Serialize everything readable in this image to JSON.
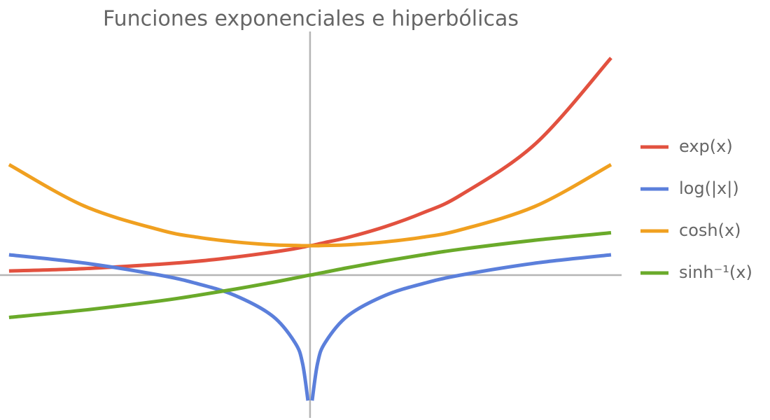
{
  "chart_data": {
    "type": "line",
    "title": "Funciones exponenciales e hiperbólicas",
    "x": [
      -2,
      -1.5,
      -1,
      -0.75,
      -0.5,
      -0.25,
      -0.1,
      -0.05,
      -0.014,
      0,
      0.014,
      0.05,
      0.1,
      0.25,
      0.5,
      0.75,
      1,
      1.5,
      2
    ],
    "series": [
      {
        "name": "exp(x)",
        "color": "#e2513f",
        "values": [
          0.14,
          0.22,
          0.37,
          0.47,
          0.61,
          0.78,
          0.9,
          0.95,
          0.99,
          1,
          1.01,
          1.05,
          1.11,
          1.28,
          1.65,
          2.12,
          2.72,
          4.48,
          7.39
        ]
      },
      {
        "name": "log(|x|)",
        "color": "#5b7fdb",
        "values": [
          0.69,
          0.41,
          0,
          -0.29,
          -0.69,
          -1.39,
          -2.3,
          -3.0,
          -4.27,
          null,
          -4.27,
          -3.0,
          -2.3,
          -1.39,
          -0.69,
          -0.29,
          0,
          0.41,
          0.69
        ]
      },
      {
        "name": "cosh(x)",
        "color": "#f0a020",
        "values": [
          3.76,
          2.35,
          1.54,
          1.29,
          1.13,
          1.03,
          1.01,
          1.0,
          1.0,
          1,
          1.0,
          1.0,
          1.01,
          1.03,
          1.13,
          1.29,
          1.54,
          2.35,
          3.76
        ]
      },
      {
        "name": "sinh⁻¹(x)",
        "color": "#6aaa2a",
        "values": [
          -1.44,
          -1.19,
          -0.88,
          -0.69,
          -0.48,
          -0.25,
          -0.1,
          -0.05,
          -0.01,
          0,
          0.01,
          0.05,
          0.1,
          0.25,
          0.48,
          0.69,
          0.88,
          1.19,
          1.44
        ]
      }
    ],
    "xlim": [
      -2.06,
      2.07
    ],
    "ylim": [
      -4.86,
      8.29
    ],
    "legend": "right"
  }
}
